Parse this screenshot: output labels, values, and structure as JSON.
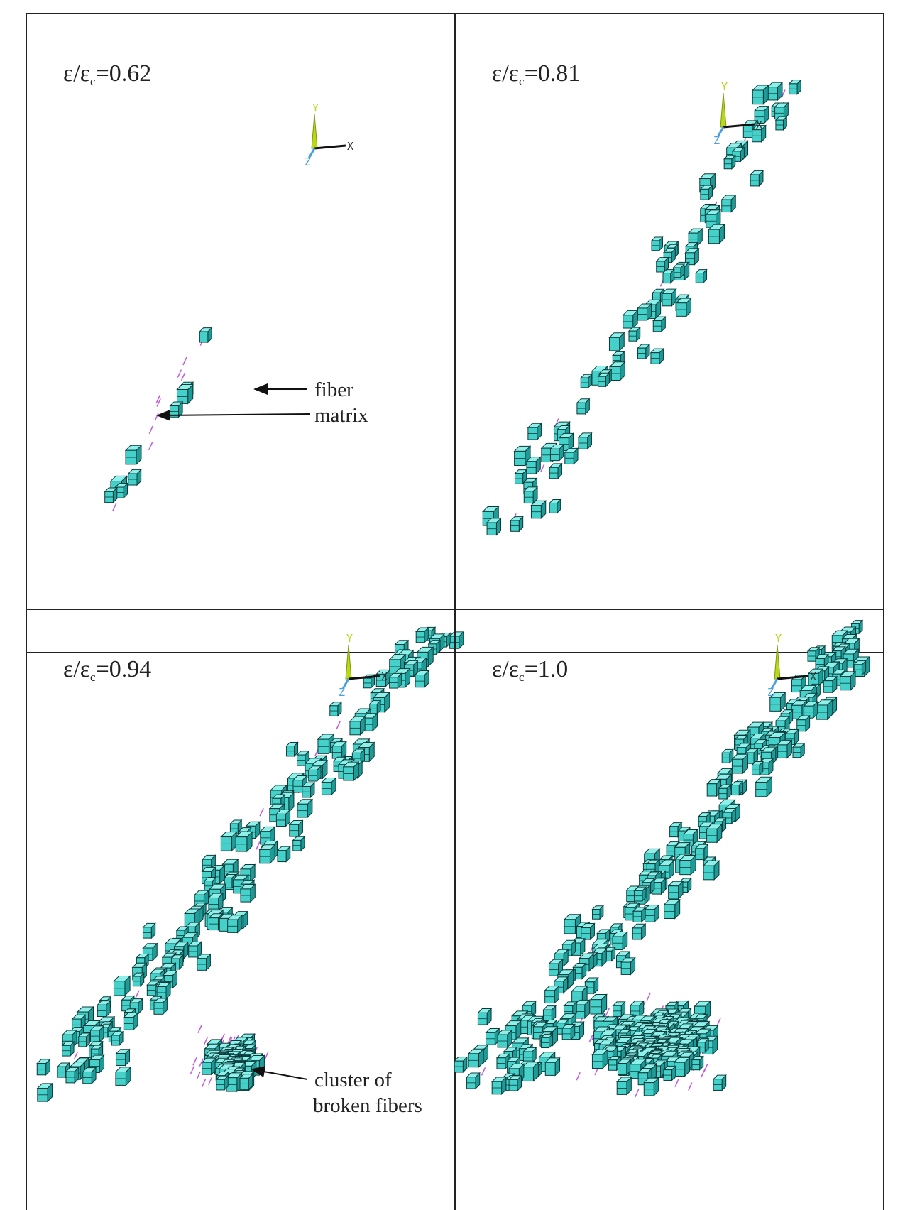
{
  "panels": [
    {
      "label": {
        "symbol": "ε/ε",
        "subscript": "c",
        "value": "=0.62"
      },
      "axes": {
        "y": "Y",
        "x": "X",
        "z": "Z"
      },
      "annotations": [
        "fiber",
        "matrix"
      ]
    },
    {
      "label": {
        "symbol": "ε/ε",
        "subscript": "c",
        "value": "=0.81"
      },
      "axes": {
        "y": "Y",
        "x": "X",
        "z": "Z"
      }
    },
    {
      "label": {
        "symbol": "ε/ε",
        "subscript": "c",
        "value": "=0.94"
      },
      "axes": {
        "y": "Y",
        "x": "X",
        "z": "Z"
      },
      "annotations": [
        "cluster of",
        "broken fibers"
      ]
    },
    {
      "label": {
        "symbol": "ε/ε",
        "subscript": "c",
        "value": "=1.0"
      },
      "axes": {
        "y": "Y",
        "x": "X",
        "z": "Z"
      }
    }
  ]
}
